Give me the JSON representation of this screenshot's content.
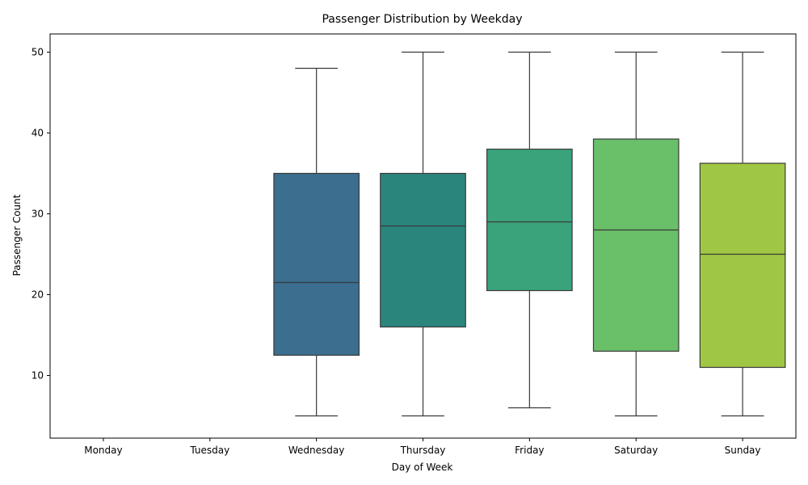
{
  "chart_data": {
    "type": "box",
    "title": "Passenger Distribution by Weekday",
    "xlabel": "Day of Week",
    "ylabel": "Passenger Count",
    "categories": [
      "Monday",
      "Tuesday",
      "Wednesday",
      "Thursday",
      "Friday",
      "Saturday",
      "Sunday"
    ],
    "boxes": [
      null,
      null,
      {
        "min": 5,
        "q1": 12.5,
        "median": 21.5,
        "q3": 35,
        "max": 48,
        "color": "#3b6e8f"
      },
      {
        "min": 5,
        "q1": 16,
        "median": 28.5,
        "q3": 35,
        "max": 50,
        "color": "#2a857d"
      },
      {
        "min": 6,
        "q1": 20.5,
        "median": 29,
        "q3": 38,
        "max": 50,
        "color": "#3aa37b"
      },
      {
        "min": 5,
        "q1": 13,
        "median": 28,
        "q3": 39.25,
        "max": 50,
        "color": "#6abf69"
      },
      {
        "min": 5,
        "q1": 11,
        "median": 25,
        "q3": 36.25,
        "max": 50,
        "color": "#a0c744"
      }
    ],
    "yticks": [
      10,
      20,
      30,
      40,
      50
    ],
    "ylim": [
      2.25,
      52.25
    ],
    "grid": false
  }
}
